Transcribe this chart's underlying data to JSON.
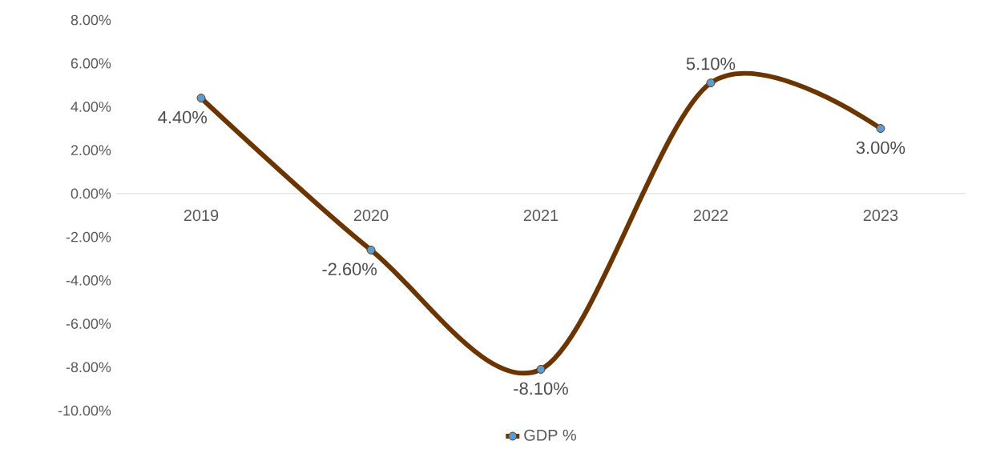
{
  "chart_data": {
    "type": "line",
    "categories": [
      "2019",
      "2020",
      "2021",
      "2022",
      "2023"
    ],
    "series": [
      {
        "name": "GDP %",
        "color": "#6b3500",
        "values": [
          4.4,
          -2.6,
          -8.1,
          5.1,
          3.0
        ],
        "value_labels": [
          "4.40%",
          "-2.60%",
          "-8.10%",
          "5.10%",
          "3.00%"
        ]
      }
    ],
    "ylim": [
      -10,
      8
    ],
    "yticks": [
      {
        "value": -10,
        "label": "-10.00%"
      },
      {
        "value": -8,
        "label": "-8.00%"
      },
      {
        "value": -6,
        "label": "-6.00%"
      },
      {
        "value": -4,
        "label": "-4.00%"
      },
      {
        "value": -2,
        "label": "-2.00%"
      },
      {
        "value": 0,
        "label": "0.00%"
      },
      {
        "value": 2,
        "label": "2.00%"
      },
      {
        "value": 4,
        "label": "4.00%"
      },
      {
        "value": 6,
        "label": "6.00%"
      },
      {
        "value": 8,
        "label": "8.00%"
      }
    ],
    "legend": "bottom",
    "marker": "circle",
    "line_style": "solid",
    "grid": false
  }
}
